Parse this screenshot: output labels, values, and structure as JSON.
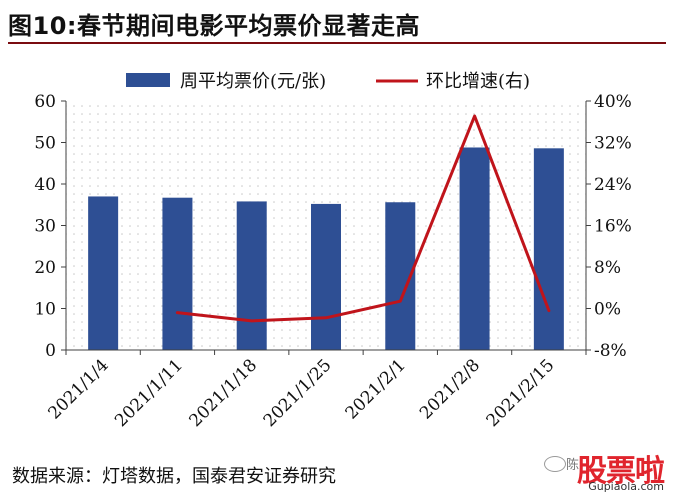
{
  "title": "图10:春节期间电影平均票价显著走高",
  "source": "数据来源：灯塔数据，国泰君安证券研究",
  "watermark": {
    "prefix": "陈",
    "brand": "股票啦",
    "url": "Gupiaola.com"
  },
  "colors": {
    "bar": "#2e4f94",
    "line": "#c0141b",
    "title_rule": "#7a0c10",
    "plot_dots": "#c8c8c8",
    "axis": "#404040",
    "watermark": "#e0252d"
  },
  "chart_data": {
    "type": "bar",
    "categories": [
      "2021/1/4",
      "2021/1/11",
      "2021/1/18",
      "2021/1/25",
      "2021/2/1",
      "2021/2/8",
      "2021/2/15"
    ],
    "series": [
      {
        "name": "周平均票价(元/张)",
        "type": "bar",
        "axis": "left",
        "values": [
          37,
          36.7,
          35.8,
          35.2,
          35.6,
          48.8,
          48.6
        ]
      },
      {
        "name": "环比增速(右)",
        "type": "line",
        "axis": "right",
        "values": [
          null,
          -0.8,
          -2.4,
          -1.8,
          1.4,
          37.1,
          -0.4
        ]
      }
    ],
    "y_left": {
      "lim": [
        0,
        60
      ],
      "ticks": [
        0,
        10,
        20,
        30,
        40,
        50,
        60
      ],
      "tick_labels": [
        "0",
        "10",
        "20",
        "30",
        "40",
        "50",
        "60"
      ]
    },
    "y_right": {
      "lim": [
        -8,
        40
      ],
      "ticks": [
        -8,
        0,
        8,
        16,
        24,
        32,
        40
      ],
      "tick_labels": [
        "-8%",
        "0%",
        "8%",
        "16%",
        "24%",
        "32%",
        "40%"
      ]
    },
    "legend": {
      "position": "top",
      "entries": [
        "周平均票价(元/张)",
        "环比增速(右)"
      ]
    },
    "grid": false,
    "xlabel": "",
    "ylabel": ""
  }
}
